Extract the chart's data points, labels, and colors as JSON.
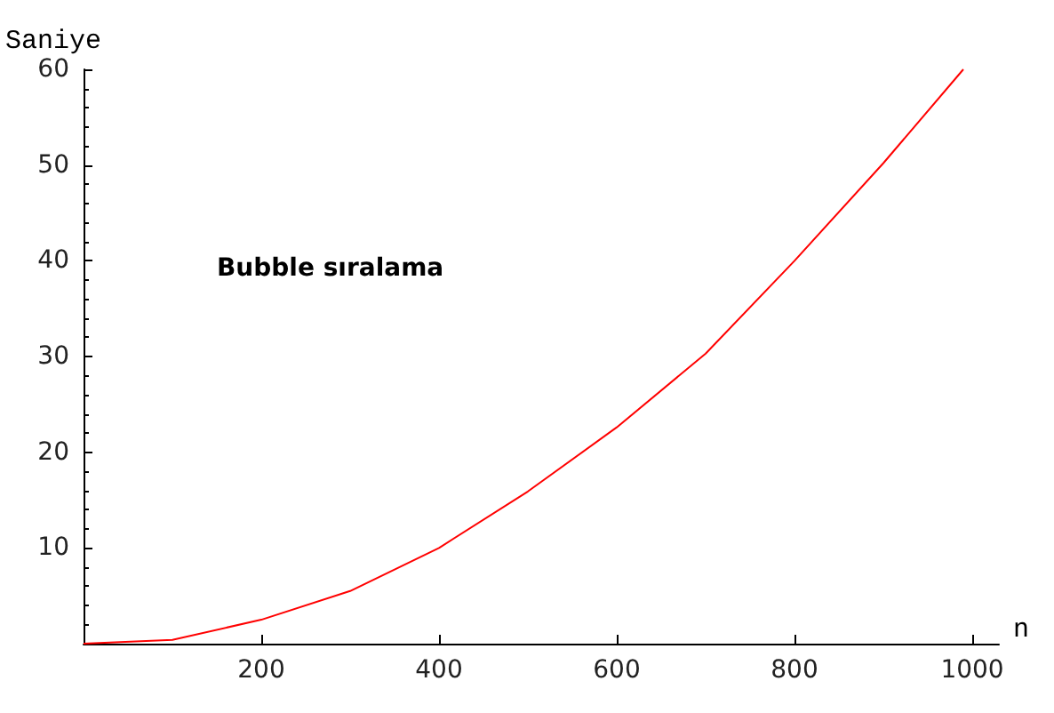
{
  "chart_data": {
    "type": "line",
    "xlabel": "n",
    "ylabel": "Saniye",
    "annotations": [
      "Bubble sıralama"
    ],
    "x": [
      0,
      100,
      200,
      300,
      400,
      500,
      600,
      700,
      800,
      900,
      990
    ],
    "series": [
      {
        "color": "#ff0000",
        "values": [
          0,
          0.4,
          2.5,
          5.5,
          10,
          15.9,
          22.6,
          30.3,
          40,
          50.2,
          60
        ]
      }
    ],
    "xlim": [
      0,
      1030
    ],
    "xticks": [
      200,
      400,
      600,
      800,
      1000
    ],
    "ylim": [
      0,
      60
    ],
    "yticks": [
      10,
      20,
      30,
      40,
      50,
      60
    ],
    "grid": false,
    "marker": "none",
    "line_style": "solid"
  }
}
